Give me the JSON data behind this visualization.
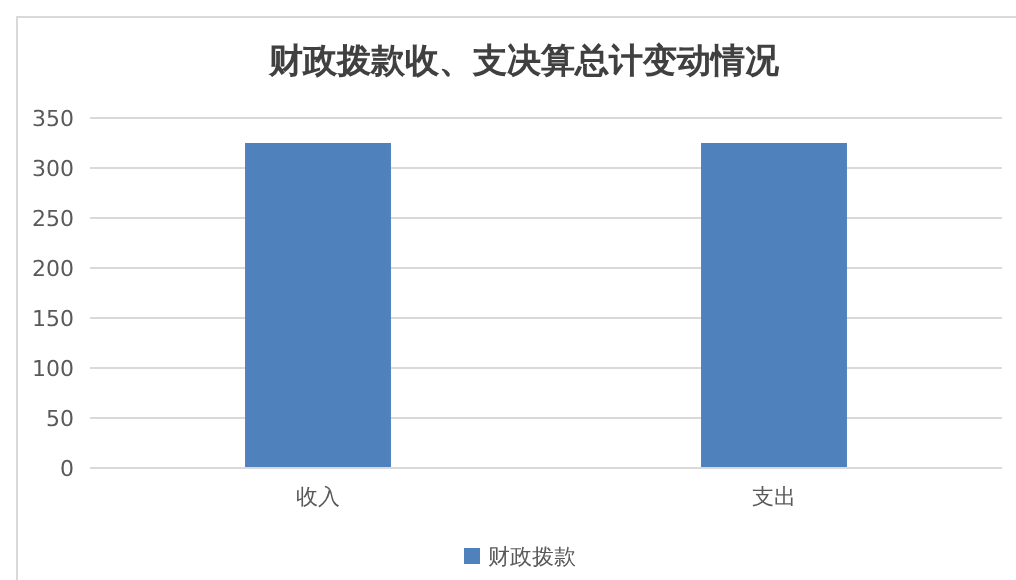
{
  "chart_data": {
    "type": "bar",
    "title": "财政拨款收、支决算总计变动情况",
    "categories": [
      "收入",
      "支出"
    ],
    "series": [
      {
        "name": "财政拨款",
        "color": "#4f81bd",
        "values": [
          325,
          325
        ]
      }
    ],
    "ylim": [
      0,
      350
    ],
    "yticks": [
      0,
      50,
      100,
      150,
      200,
      250,
      300,
      350
    ],
    "grid": "y",
    "legend": "bottom"
  }
}
